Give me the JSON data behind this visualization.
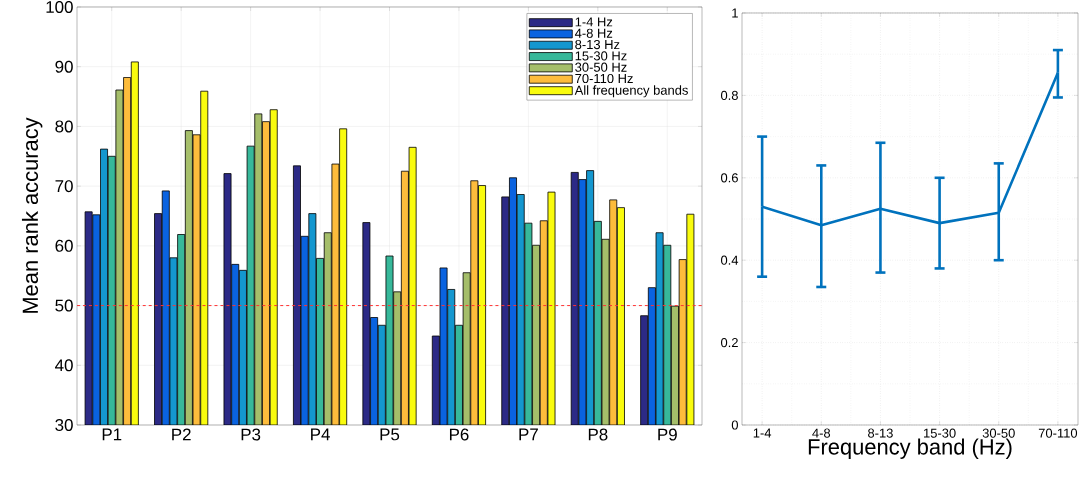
{
  "chart_data": [
    {
      "type": "bar",
      "ylabel": "Mean rank accuracy",
      "categories": [
        "P1",
        "P2",
        "P3",
        "P4",
        "P5",
        "P6",
        "P7",
        "P8",
        "P9"
      ],
      "series": [
        {
          "name": "1-4 Hz",
          "color": "#2c2a86",
          "values": [
            65.7,
            65.4,
            72.1,
            73.4,
            63.9,
            44.9,
            68.2,
            72.3,
            48.3
          ]
        },
        {
          "name": "4-8 Hz",
          "color": "#0a63e0",
          "values": [
            65.2,
            69.2,
            56.9,
            61.6,
            48.0,
            56.3,
            71.4,
            71.1,
            53.0
          ]
        },
        {
          "name": "8-13 Hz",
          "color": "#1497cf",
          "values": [
            76.2,
            58.0,
            55.9,
            65.4,
            46.7,
            52.7,
            68.6,
            72.6,
            62.2
          ]
        },
        {
          "name": "15-30 Hz",
          "color": "#37b89a",
          "values": [
            75.0,
            61.9,
            76.7,
            57.9,
            58.3,
            46.7,
            63.8,
            64.1,
            60.1
          ]
        },
        {
          "name": "30-50 Hz",
          "color": "#a5be6a",
          "values": [
            86.1,
            79.3,
            82.1,
            62.2,
            52.3,
            55.5,
            60.1,
            61.1,
            49.9
          ]
        },
        {
          "name": "70-110 Hz",
          "color": "#fdbc3c",
          "values": [
            88.2,
            78.6,
            80.8,
            73.7,
            72.5,
            70.9,
            64.2,
            67.7,
            57.7
          ]
        },
        {
          "name": "All frequency bands",
          "color": "#f9fb0e",
          "values": [
            90.8,
            85.9,
            82.8,
            79.6,
            76.5,
            70.1,
            69.0,
            66.4,
            65.3
          ]
        }
      ],
      "ylim": [
        30,
        100
      ],
      "yticks": [
        30,
        40,
        50,
        60,
        70,
        80,
        90,
        100
      ],
      "grid": true,
      "legend": "top right",
      "ref_lines": [
        {
          "axis": "y",
          "value": 50,
          "color": "#ff3333",
          "line_style": "dashed"
        }
      ]
    },
    {
      "type": "line",
      "xlabel": "Frequency band (Hz)",
      "categories": [
        "1-4",
        "4-8",
        "8-13",
        "15-30",
        "30-50",
        "70-110"
      ],
      "color": "#0072bd",
      "values": [
        0.53,
        0.485,
        0.525,
        0.49,
        0.515,
        0.855
      ],
      "errors": [
        [
          0.36,
          0.7
        ],
        [
          0.335,
          0.63
        ],
        [
          0.37,
          0.685
        ],
        [
          0.38,
          0.6
        ],
        [
          0.4,
          0.635
        ],
        [
          0.795,
          0.91
        ]
      ],
      "ylim": [
        0,
        1
      ],
      "yticks": [
        0,
        0.2,
        0.4,
        0.6,
        0.8,
        1
      ],
      "grid": true
    }
  ]
}
